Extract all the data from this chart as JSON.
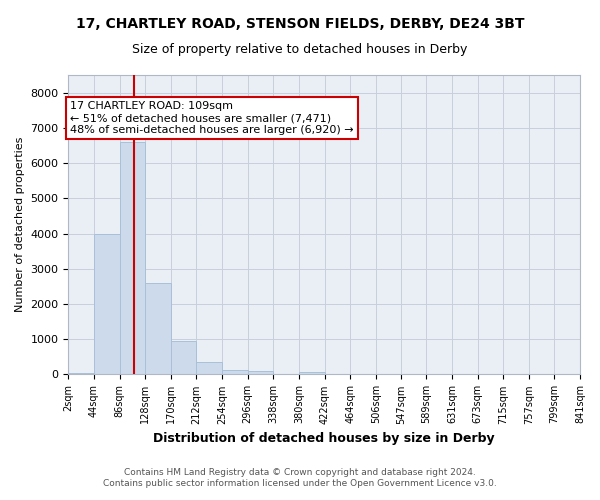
{
  "title": "17, CHARTLEY ROAD, STENSON FIELDS, DERBY, DE24 3BT",
  "subtitle": "Size of property relative to detached houses in Derby",
  "xlabel": "Distribution of detached houses by size in Derby",
  "ylabel": "Number of detached properties",
  "footer_line1": "Contains HM Land Registry data © Crown copyright and database right 2024.",
  "footer_line2": "Contains public sector information licensed under the Open Government Licence v3.0.",
  "bar_color": "#ccdaeb",
  "bar_edgecolor": "#aac0d8",
  "grid_color": "#c8d0dc",
  "annotation_text": "17 CHARTLEY ROAD: 109sqm\n← 51% of detached houses are smaller (7,471)\n48% of semi-detached houses are larger (6,920) →",
  "annotation_box_color": "#ffffff",
  "annotation_box_edgecolor": "#cc0000",
  "vline_color": "#cc0000",
  "vline_x": 109,
  "bin_edges": [
    2,
    44,
    86,
    128,
    170,
    212,
    254,
    296,
    338,
    380,
    422,
    464,
    506,
    547,
    589,
    631,
    673,
    715,
    757,
    799,
    841
  ],
  "bar_heights": [
    50,
    4000,
    6600,
    2600,
    950,
    340,
    130,
    100,
    0,
    80,
    0,
    0,
    0,
    0,
    0,
    0,
    0,
    0,
    0,
    0
  ],
  "ylim": [
    0,
    8500
  ],
  "yticks": [
    0,
    1000,
    2000,
    3000,
    4000,
    5000,
    6000,
    7000,
    8000
  ],
  "figsize": [
    6.0,
    5.0
  ],
  "dpi": 100,
  "background_color": "#ffffff",
  "plot_background_color": "#eaeff6"
}
